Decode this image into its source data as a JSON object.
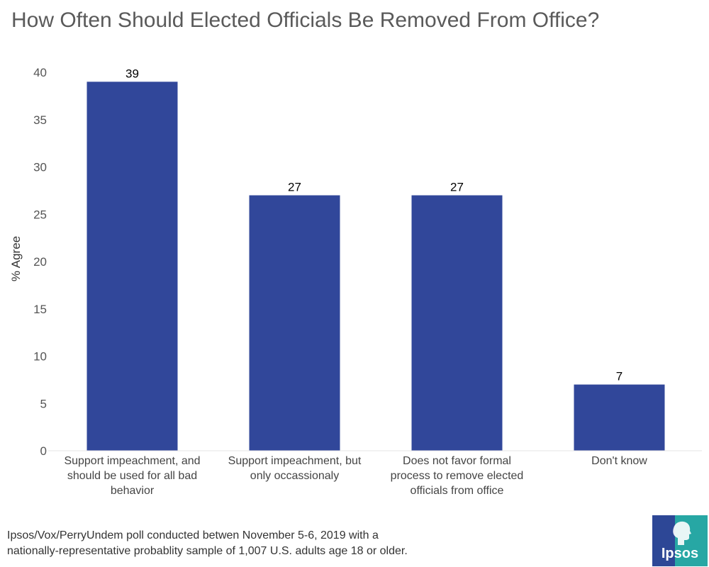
{
  "chart_data": {
    "type": "bar",
    "title": "How Often Should Elected Officials Be Removed From Office?",
    "ylabel": "% Agree",
    "xlabel": "",
    "categories": [
      "Support impeachment, and should be used for all bad behavior",
      "Support impeachment, but only occassionaly",
      "Does not favor formal process to remove elected officials from office",
      "Don't know"
    ],
    "category_lines": [
      [
        "Support impeachment, and",
        "should be used for all bad",
        "behavior"
      ],
      [
        "Support impeachment, but",
        "only occassionaly"
      ],
      [
        "Does not favor formal",
        "process to remove elected",
        "officials from office"
      ],
      [
        "Don't know"
      ]
    ],
    "values": [
      39,
      27,
      27,
      7
    ],
    "data_labels": [
      "39",
      "27",
      "27",
      "7"
    ],
    "ylim": [
      0,
      40
    ],
    "yticks": [
      "0",
      "5",
      "10",
      "15",
      "20",
      "25",
      "30",
      "35",
      "40"
    ],
    "bar_color": "#31479a",
    "grid": false
  },
  "footnote": {
    "line1": "Ipsos/Vox/PerryUndem poll conducted betwen November 5-6, 2019 with a",
    "line2": "nationally-representative probablity sample of 1,007 U.S. adults age 18 or older."
  },
  "logo": {
    "text": "Ipsos",
    "primary_color": "#2d4796",
    "secondary_color": "#27a7a4"
  }
}
